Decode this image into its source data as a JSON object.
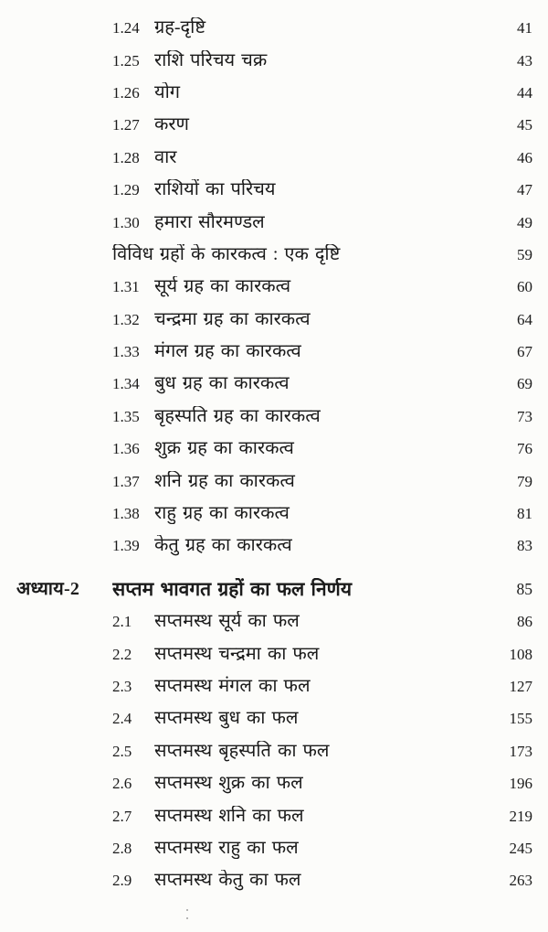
{
  "page": {
    "kind": "book-table-of-contents-scan",
    "background_color": "#fcfcfa",
    "ink_color": "#1b1b1b"
  },
  "toc": {
    "rows": [
      {
        "type": "entry",
        "num": "1.24",
        "title": "ग्रह-दृष्टि",
        "page": "41"
      },
      {
        "type": "entry",
        "num": "1.25",
        "title": "राशि परिचय चक्र",
        "page": "43"
      },
      {
        "type": "entry",
        "num": "1.26",
        "title": "योग",
        "page": "44"
      },
      {
        "type": "entry",
        "num": "1.27",
        "title": "करण",
        "page": "45"
      },
      {
        "type": "entry",
        "num": "1.28",
        "title": "वार",
        "page": "46"
      },
      {
        "type": "entry",
        "num": "1.29",
        "title": "राशियों का परिचय",
        "page": "47"
      },
      {
        "type": "entry",
        "num": "1.30",
        "title": "हमारा सौरमण्डल",
        "page": "49"
      },
      {
        "type": "section",
        "title": "विविध ग्रहों के कारकत्व : एक दृष्टि",
        "page": "59"
      },
      {
        "type": "entry",
        "num": "1.31",
        "title": "सूर्य ग्रह का कारकत्व",
        "page": "60"
      },
      {
        "type": "entry",
        "num": "1.32",
        "title": "चन्द्रमा ग्रह का कारकत्व",
        "page": "64"
      },
      {
        "type": "entry",
        "num": "1.33",
        "title": "मंगल ग्रह का कारकत्व",
        "page": "67"
      },
      {
        "type": "entry",
        "num": "1.34",
        "title": "बुध ग्रह का कारकत्व",
        "page": "69"
      },
      {
        "type": "entry",
        "num": "1.35",
        "title": "बृहस्पति ग्रह का कारकत्व",
        "page": "73"
      },
      {
        "type": "entry",
        "num": "1.36",
        "title": "शुक्र ग्रह का कारकत्व",
        "page": "76"
      },
      {
        "type": "entry",
        "num": "1.37",
        "title": "शनि ग्रह का कारकत्व",
        "page": "79"
      },
      {
        "type": "entry",
        "num": "1.38",
        "title": "राहु ग्रह का कारकत्व",
        "page": "81"
      },
      {
        "type": "entry",
        "num": "1.39",
        "title": "केतु ग्रह का कारकत्व",
        "page": "83"
      },
      {
        "type": "chapter",
        "label": "अध्याय-2",
        "title": "सप्तम भावगत ग्रहों का फल निर्णय",
        "page": "85"
      },
      {
        "type": "entry",
        "num": "2.1",
        "title": "सप्तमस्थ सूर्य का फल",
        "page": "86"
      },
      {
        "type": "entry",
        "num": "2.2",
        "title": "सप्तमस्थ चन्द्रमा का फल",
        "page": "108"
      },
      {
        "type": "entry",
        "num": "2.3",
        "title": "सप्तमस्थ मंगल का फल",
        "page": "127"
      },
      {
        "type": "entry",
        "num": "2.4",
        "title": "सप्तमस्थ बुध का फल",
        "page": "155"
      },
      {
        "type": "entry",
        "num": "2.5",
        "title": "सप्तमस्थ बृहस्पति का फल",
        "page": "173"
      },
      {
        "type": "entry",
        "num": "2.6",
        "title": "सप्तमस्थ शुक्र का फल",
        "page": "196"
      },
      {
        "type": "entry",
        "num": "2.7",
        "title": "सप्तमस्थ शनि का फल",
        "page": "219"
      },
      {
        "type": "entry",
        "num": "2.8",
        "title": "सप्तमस्थ राहु का फल",
        "page": "245"
      },
      {
        "type": "entry",
        "num": "2.9",
        "title": "सप्तमस्थ केतु का फल",
        "page": "263"
      }
    ]
  }
}
